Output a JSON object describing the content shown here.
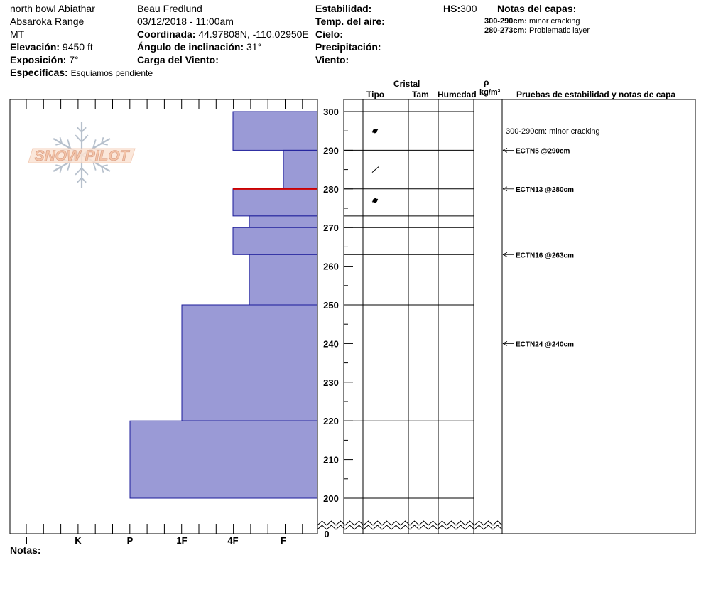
{
  "header": {
    "location": "north bowl Abiathar",
    "range": "Absaroka Range",
    "state": "MT",
    "elevation_label": "Elevación:",
    "elevation_value": "9450 ft",
    "aspect_label": "Exposición:",
    "aspect_value": "7°",
    "specifics_label": "Especificas:",
    "specifics_value": "Esquiamos pendiente",
    "observer": "Beau  Fredlund",
    "datetime": "03/12/2018 - 11:00am",
    "coord_label": "Coordinada:",
    "coord_value": "44.97808N, -110.02950E",
    "slope_label": "Ángulo de inclinación:",
    "slope_value": "31°",
    "wind_load_label": "Carga del Viento:",
    "stability_label": "Estabilidad:",
    "air_temp_label": "Temp. del aire:",
    "sky_label": "Cielo:",
    "precip_label": "Precipitación:",
    "wind_label": "Viento:",
    "hs_label": "HS:",
    "hs_value": "300",
    "layer_notes_label": "Notas del capas:",
    "layer_notes": [
      {
        "range": "300-290cm:",
        "text": "minor cracking"
      },
      {
        "range": "280-273cm:",
        "text": "Problematic layer"
      }
    ]
  },
  "logo_text": "SNOW PILOT",
  "columns": {
    "cristal": "Cristal",
    "tipo": "Tipo",
    "tam": "Tam",
    "humedad": "Humedad",
    "rho": "ρ",
    "density_unit": "kg/m³",
    "tests": "Pruebas de estabilidad y notas de capa"
  },
  "footer": {
    "notes_label": "Notas:"
  },
  "colors": {
    "layer_fill": "#9a9ad6",
    "layer_stroke": "#1a1a99",
    "problem_layer": "#cc0000",
    "logo": "#f4c4a8",
    "flake": "#b6c0cc"
  },
  "chart_data": {
    "type": "snow_profile",
    "hardness_scale": [
      "I",
      "K",
      "P",
      "1F",
      "4F",
      "F"
    ],
    "height_ticks": [
      300,
      290,
      280,
      270,
      260,
      250,
      240,
      230,
      220,
      210,
      200,
      0
    ],
    "layers": [
      {
        "top": 300,
        "bottom": 290,
        "hardness": "4F"
      },
      {
        "top": 290,
        "bottom": 280,
        "hardness": "F"
      },
      {
        "top": 280,
        "bottom": 273,
        "hardness": "4F"
      },
      {
        "top": 273,
        "bottom": 270,
        "hardness": "4F-"
      },
      {
        "top": 270,
        "bottom": 263,
        "hardness": "4F"
      },
      {
        "top": 263,
        "bottom": 250,
        "hardness": "4F-"
      },
      {
        "top": 250,
        "bottom": 220,
        "hardness": "1F"
      },
      {
        "top": 220,
        "bottom": 200,
        "hardness": "P"
      }
    ],
    "problem_layer_height": 280,
    "crystal_symbols": [
      {
        "height": 295,
        "symbol": "rounded"
      },
      {
        "height": 285,
        "symbol": "slash"
      },
      {
        "height": 277,
        "symbol": "rounded"
      }
    ],
    "layer_note": {
      "height": 295,
      "text": "300-290cm:  minor cracking"
    },
    "tests": [
      {
        "height": 290,
        "label": "ECTN5 @290cm"
      },
      {
        "height": 280,
        "label": "ECTN13 @280cm"
      },
      {
        "height": 263,
        "label": "ECTN16 @263cm"
      },
      {
        "height": 240,
        "label": "ECTN24 @240cm"
      }
    ]
  }
}
